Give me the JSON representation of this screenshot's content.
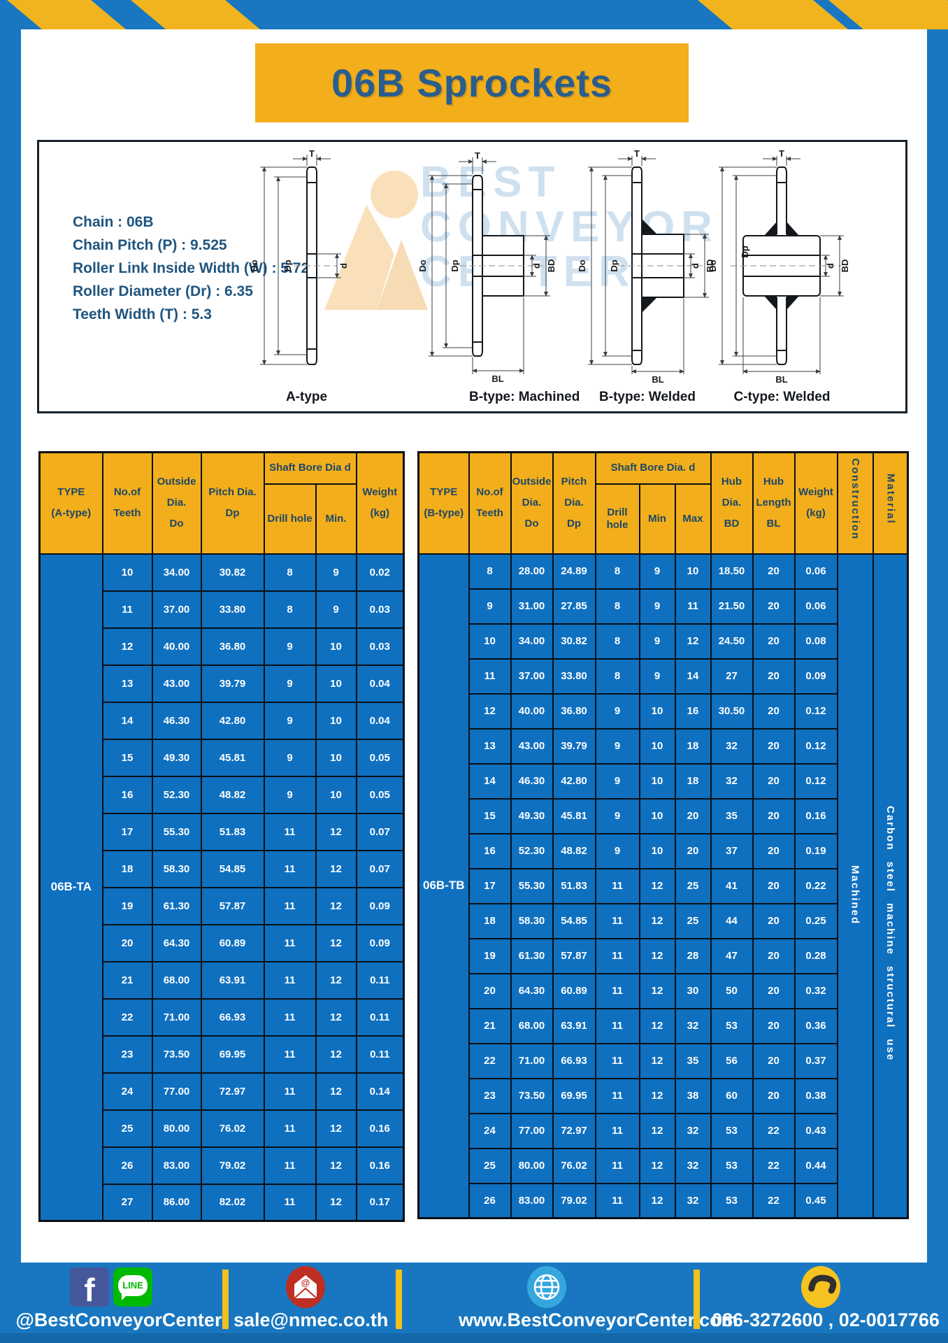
{
  "page": {
    "title": "06B Sprockets"
  },
  "colors": {
    "frame_blue": "#1877c0",
    "table_blue": "#0f70c0",
    "accent_yellow": "#f2ae1b",
    "stripe_yellow": "#f2b41e",
    "title_text": "#2a5d8c",
    "header_text": "#1d4767",
    "facebook_blue": "#44589b",
    "line_green": "#00b900",
    "mail_red": "#bf2e22",
    "globe_blue": "#35a7dd",
    "phone_yellow": "#f5c21f"
  },
  "specs": {
    "lines": [
      "Chain : 06B",
      "Chain Pitch (P) : 9.525",
      "Roller Link Inside Width (W) : 5.72",
      "Roller Diameter (Dr) : 6.35",
      "Teeth Width (T) : 5.3"
    ]
  },
  "diagrams": {
    "watermark": [
      "BEST",
      "CONVEYOR",
      "CENTER"
    ],
    "captions": [
      "A-type",
      "B-type: Machined",
      "B-type: Welded",
      "C-type: Welded"
    ],
    "dims": {
      "t": "T",
      "do": "Do",
      "dp": "Dp",
      "d": "d",
      "bd": "BD",
      "bl": "BL"
    }
  },
  "table_a": {
    "headers": {
      "type": "TYPE\n(A-type)",
      "teeth": "No.of\nTeeth",
      "outside": "Outside\nDia.\nDo",
      "pitch": "Pitch Dia.\nDp",
      "shaft": "Shaft Bore Dia d",
      "drill": "Drill hole",
      "min": "Min.",
      "weight": "Weight\n(kg)"
    },
    "type_label": "06B-TA",
    "rows": [
      [
        "10",
        "34.00",
        "30.82",
        "8",
        "9",
        "0.02"
      ],
      [
        "11",
        "37.00",
        "33.80",
        "8",
        "9",
        "0.03"
      ],
      [
        "12",
        "40.00",
        "36.80",
        "9",
        "10",
        "0.03"
      ],
      [
        "13",
        "43.00",
        "39.79",
        "9",
        "10",
        "0.04"
      ],
      [
        "14",
        "46.30",
        "42.80",
        "9",
        "10",
        "0.04"
      ],
      [
        "15",
        "49.30",
        "45.81",
        "9",
        "10",
        "0.05"
      ],
      [
        "16",
        "52.30",
        "48.82",
        "9",
        "10",
        "0.05"
      ],
      [
        "17",
        "55.30",
        "51.83",
        "11",
        "12",
        "0.07"
      ],
      [
        "18",
        "58.30",
        "54.85",
        "11",
        "12",
        "0.07"
      ],
      [
        "19",
        "61.30",
        "57.87",
        "11",
        "12",
        "0.09"
      ],
      [
        "20",
        "64.30",
        "60.89",
        "11",
        "12",
        "0.09"
      ],
      [
        "21",
        "68.00",
        "63.91",
        "11",
        "12",
        "0.11"
      ],
      [
        "22",
        "71.00",
        "66.93",
        "11",
        "12",
        "0.11"
      ],
      [
        "23",
        "73.50",
        "69.95",
        "11",
        "12",
        "0.11"
      ],
      [
        "24",
        "77.00",
        "72.97",
        "11",
        "12",
        "0.14"
      ],
      [
        "25",
        "80.00",
        "76.02",
        "11",
        "12",
        "0.16"
      ],
      [
        "26",
        "83.00",
        "79.02",
        "11",
        "12",
        "0.16"
      ],
      [
        "27",
        "86.00",
        "82.02",
        "11",
        "12",
        "0.17"
      ]
    ]
  },
  "table_b": {
    "headers": {
      "type": "TYPE\n(B-type)",
      "teeth": "No.of\nTeeth",
      "outside": "Outside\nDia.\nDo",
      "pitch": "Pitch\nDia.\nDp",
      "shaft": "Shaft Bore Dia. d",
      "drill": "Drill hole",
      "min": "Min",
      "max": "Max",
      "hub_dia": "Hub\nDia.\nBD",
      "hub_len": "Hub\nLength\nBL",
      "weight": "Weight\n(kg)",
      "construction": "Construction",
      "material": "Material"
    },
    "type_label": "06B-TB",
    "construction_value": "Machined",
    "material_value": "Carbon steel machine structural use",
    "rows": [
      [
        "8",
        "28.00",
        "24.89",
        "8",
        "9",
        "10",
        "18.50",
        "20",
        "0.06"
      ],
      [
        "9",
        "31.00",
        "27.85",
        "8",
        "9",
        "11",
        "21.50",
        "20",
        "0.06"
      ],
      [
        "10",
        "34.00",
        "30.82",
        "8",
        "9",
        "12",
        "24.50",
        "20",
        "0.08"
      ],
      [
        "11",
        "37.00",
        "33.80",
        "8",
        "9",
        "14",
        "27",
        "20",
        "0.09"
      ],
      [
        "12",
        "40.00",
        "36.80",
        "9",
        "10",
        "16",
        "30.50",
        "20",
        "0.12"
      ],
      [
        "13",
        "43.00",
        "39.79",
        "9",
        "10",
        "18",
        "32",
        "20",
        "0.12"
      ],
      [
        "14",
        "46.30",
        "42.80",
        "9",
        "10",
        "18",
        "32",
        "20",
        "0.12"
      ],
      [
        "15",
        "49.30",
        "45.81",
        "9",
        "10",
        "20",
        "35",
        "20",
        "0.16"
      ],
      [
        "16",
        "52.30",
        "48.82",
        "9",
        "10",
        "20",
        "37",
        "20",
        "0.19"
      ],
      [
        "17",
        "55.30",
        "51.83",
        "11",
        "12",
        "25",
        "41",
        "20",
        "0.22"
      ],
      [
        "18",
        "58.30",
        "54.85",
        "11",
        "12",
        "25",
        "44",
        "20",
        "0.25"
      ],
      [
        "19",
        "61.30",
        "57.87",
        "11",
        "12",
        "28",
        "47",
        "20",
        "0.28"
      ],
      [
        "20",
        "64.30",
        "60.89",
        "11",
        "12",
        "30",
        "50",
        "20",
        "0.32"
      ],
      [
        "21",
        "68.00",
        "63.91",
        "11",
        "12",
        "32",
        "53",
        "20",
        "0.36"
      ],
      [
        "22",
        "71.00",
        "66.93",
        "11",
        "12",
        "35",
        "56",
        "20",
        "0.37"
      ],
      [
        "23",
        "73.50",
        "69.95",
        "11",
        "12",
        "38",
        "60",
        "20",
        "0.38"
      ],
      [
        "24",
        "77.00",
        "72.97",
        "11",
        "12",
        "32",
        "53",
        "22",
        "0.43"
      ],
      [
        "25",
        "80.00",
        "76.02",
        "11",
        "12",
        "32",
        "53",
        "22",
        "0.44"
      ],
      [
        "26",
        "83.00",
        "79.02",
        "11",
        "12",
        "32",
        "53",
        "22",
        "0.45"
      ]
    ]
  },
  "footer": {
    "facebook_label": "@BestConveyorCenter",
    "line_text": "LINE",
    "email": "sale@nmec.co.th",
    "website": "www.BestConveyorCenter.com",
    "phones": "086-3272600 , 02-0017766"
  }
}
